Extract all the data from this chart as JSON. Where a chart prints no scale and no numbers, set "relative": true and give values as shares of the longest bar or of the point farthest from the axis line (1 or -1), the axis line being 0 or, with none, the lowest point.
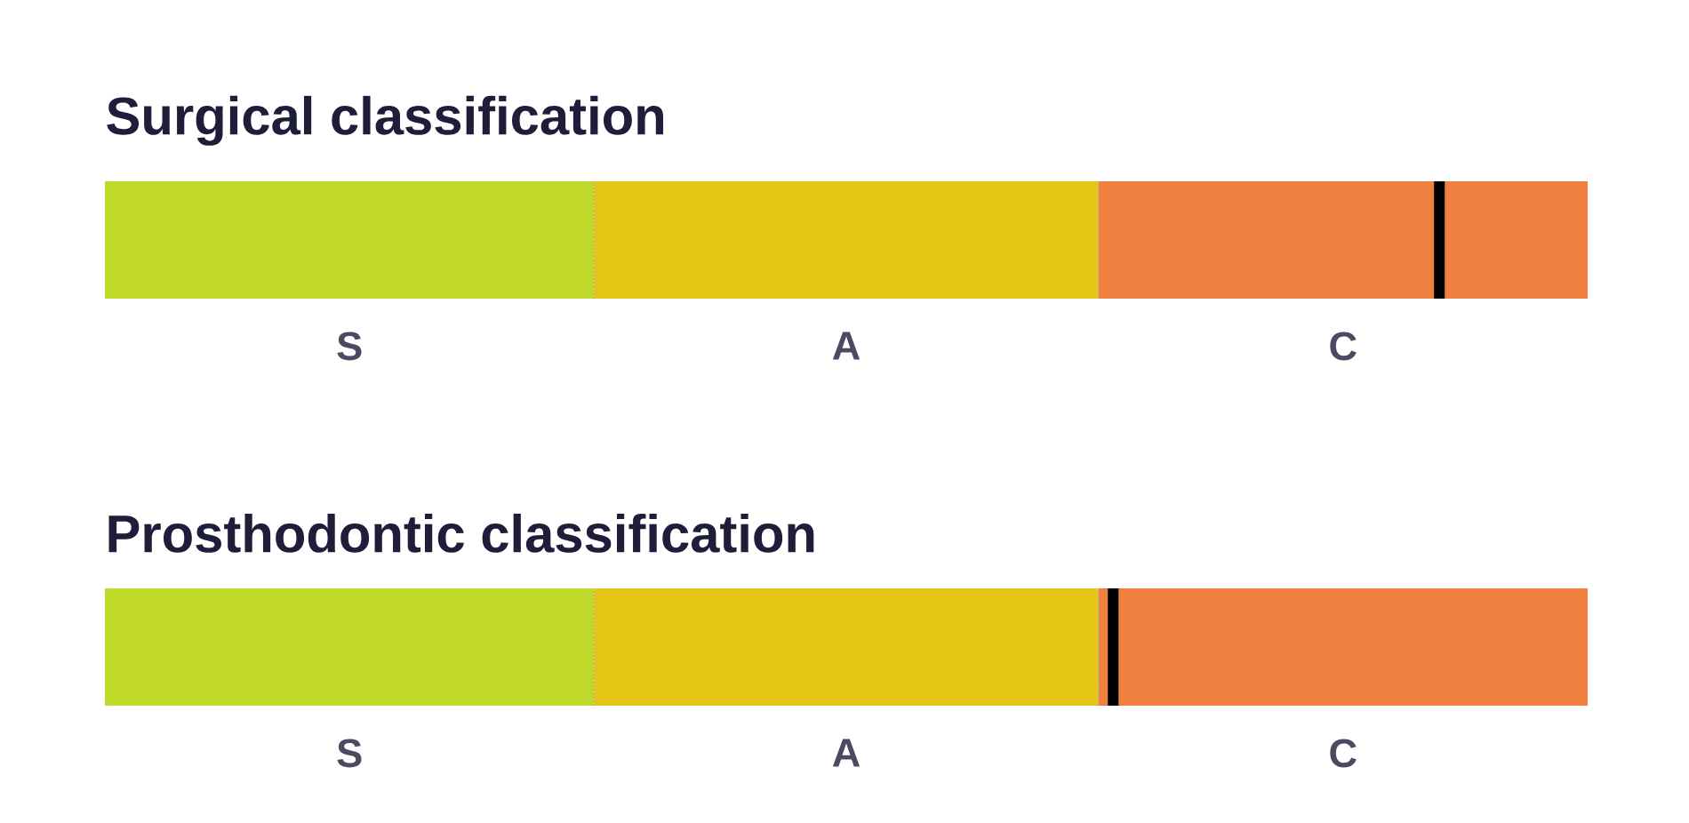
{
  "chart_data": [
    {
      "type": "bar",
      "orientation": "horizontal",
      "stacked": true,
      "relative": true,
      "title": "Surgical classification",
      "categories": [
        null
      ],
      "series": [
        {
          "name": "S",
          "color": "#c0d82a",
          "values": [
            0.33
          ]
        },
        {
          "name": "A",
          "color": "#e6c615",
          "values": [
            0.34
          ]
        },
        {
          "name": "C",
          "color": "#f08040",
          "values": [
            0.33
          ]
        }
      ],
      "ref_lines": [
        {
          "axis": "x",
          "value": 0.9,
          "color": "#000000"
        }
      ]
    },
    {
      "type": "bar",
      "orientation": "horizontal",
      "stacked": true,
      "relative": true,
      "title": "Prosthodontic classification",
      "categories": [
        null
      ],
      "series": [
        {
          "name": "S",
          "color": "#c0d82a",
          "values": [
            0.33
          ]
        },
        {
          "name": "A",
          "color": "#e6c615",
          "values": [
            0.34
          ]
        },
        {
          "name": "C",
          "color": "#f08040",
          "values": [
            0.33
          ]
        }
      ],
      "ref_lines": [
        {
          "axis": "x",
          "value": 0.68,
          "color": "#000000"
        }
      ]
    }
  ]
}
